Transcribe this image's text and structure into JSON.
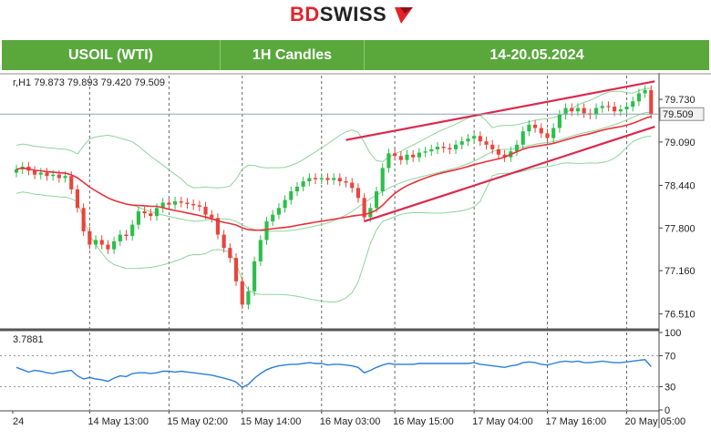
{
  "logo": {
    "brand_red": "BD",
    "brand_dark": "SWISS",
    "accent": "#e2232a"
  },
  "banner": {
    "symbol": "USOIL (WTI)",
    "timeframe": "1H Candles",
    "date_range": "14-20.05.2024",
    "color": "#5aa83c"
  },
  "chart_data": {
    "type": "candlestick",
    "header": "r,H1  79.873 79.893 79.420 79.509",
    "y_ticks": [
      "79.730",
      "79.090",
      "78.440",
      "77.800",
      "77.160",
      "76.510"
    ],
    "ylim": [
      76.3,
      80.1
    ],
    "current_price": "79.509",
    "x_ticks": [
      "24",
      "14 May 13:00",
      "15 May 02:00",
      "15 May 14:00",
      "16 May 03:00",
      "16 May 15:00",
      "17 May 04:00",
      "17 May 16:00",
      "20 May 05:00"
    ],
    "indicator": {
      "header": "3.7881",
      "y_ticks": [
        "100",
        "70",
        "30",
        "0"
      ],
      "ylim": [
        0,
        100
      ],
      "color": "#2b7fd6"
    },
    "up_color": "#2dbe4a",
    "down_color": "#e8453c",
    "ma_color": "#e8303a",
    "band_color": "#8fd39a",
    "channel_color": "#d92a4d",
    "closes": [
      78.68,
      78.72,
      78.66,
      78.6,
      78.63,
      78.58,
      78.6,
      78.55,
      78.58,
      78.38,
      78.1,
      77.75,
      77.55,
      77.62,
      77.55,
      77.48,
      77.6,
      77.7,
      77.68,
      77.85,
      78.05,
      78.02,
      77.98,
      78.1,
      78.18,
      78.15,
      78.2,
      78.18,
      78.16,
      78.14,
      78.12,
      78.0,
      77.95,
      77.7,
      77.5,
      77.35,
      77.0,
      76.65,
      76.85,
      77.3,
      77.62,
      77.9,
      78.0,
      78.1,
      78.22,
      78.35,
      78.42,
      78.5,
      78.55,
      78.53,
      78.55,
      78.52,
      78.55,
      78.5,
      78.48,
      78.4,
      78.25,
      77.96,
      78.1,
      78.35,
      78.7,
      78.92,
      78.88,
      78.82,
      78.9,
      78.86,
      78.93,
      78.95,
      78.98,
      79.02,
      79.0,
      78.98,
      79.05,
      79.1,
      79.14,
      79.18,
      79.1,
      79.05,
      78.98,
      78.9,
      78.86,
      78.95,
      79.05,
      79.25,
      79.35,
      79.3,
      79.22,
      79.15,
      79.3,
      79.5,
      79.6,
      79.55,
      79.6,
      79.52,
      79.5,
      79.6,
      79.63,
      79.62,
      79.55,
      79.58,
      79.62,
      79.7,
      79.82,
      79.87,
      79.51
    ],
    "indicator_values": [
      55,
      52,
      49,
      51,
      50,
      48,
      47,
      49,
      50,
      51,
      44,
      40,
      42,
      40,
      39,
      37,
      41,
      44,
      43,
      47,
      48,
      48,
      47,
      48,
      50,
      50,
      49,
      50,
      49,
      48,
      47,
      46,
      45,
      43,
      41,
      39,
      36,
      29,
      33,
      41,
      47,
      52,
      55,
      57,
      58,
      59,
      59,
      60,
      61,
      60,
      60,
      58,
      59,
      59,
      58,
      57,
      55,
      48,
      51,
      55,
      58,
      60,
      59,
      59,
      59,
      59,
      60,
      60,
      60,
      60,
      60,
      60,
      60,
      60,
      60,
      61,
      59,
      58,
      57,
      56,
      55,
      57,
      58,
      61,
      62,
      61,
      59,
      58,
      60,
      62,
      63,
      62,
      63,
      61,
      61,
      62,
      63,
      62,
      61,
      61,
      62,
      63,
      64,
      65,
      56
    ]
  }
}
